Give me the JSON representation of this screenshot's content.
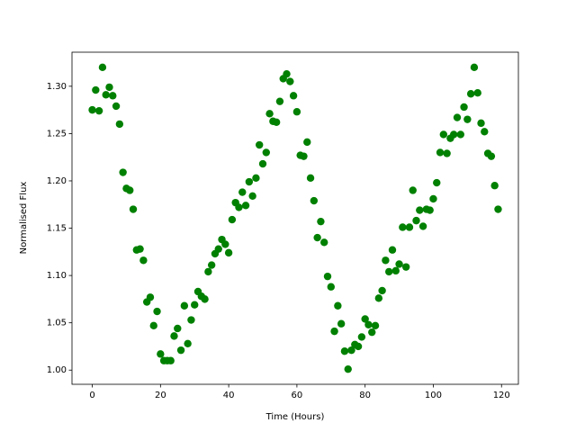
{
  "chart_data": {
    "type": "scatter",
    "xlabel": "Time (Hours)",
    "ylabel": "Normalised Flux",
    "color": "#008000",
    "x": [
      0,
      1,
      2,
      3,
      4,
      5,
      6,
      7,
      8,
      9,
      10,
      11,
      12,
      13,
      14,
      15,
      16,
      17,
      18,
      19,
      20,
      21,
      22,
      23,
      24,
      25,
      26,
      27,
      28,
      29,
      30,
      31,
      32,
      33,
      34,
      35,
      36,
      37,
      38,
      39,
      40,
      41,
      42,
      43,
      44,
      45,
      46,
      47,
      48,
      49,
      50,
      51,
      52,
      53,
      54,
      55,
      56,
      57,
      58,
      59,
      60,
      61,
      62,
      63,
      64,
      65,
      66,
      67,
      68,
      69,
      70,
      71,
      72,
      73,
      74,
      75,
      76,
      77,
      78,
      79,
      80,
      81,
      82,
      83,
      84,
      85,
      86,
      87,
      88,
      89,
      90,
      91,
      92,
      93,
      94,
      95,
      96,
      97,
      98,
      99,
      100,
      101,
      102,
      103,
      104,
      105,
      106,
      107,
      108,
      109,
      110,
      111,
      112,
      113,
      114,
      115,
      116,
      117,
      118,
      119
    ],
    "values": [
      1.275,
      1.296,
      1.274,
      1.32,
      1.291,
      1.299,
      1.29,
      1.279,
      1.26,
      1.209,
      1.192,
      1.19,
      1.17,
      1.127,
      1.128,
      1.116,
      1.072,
      1.077,
      1.047,
      1.062,
      1.017,
      1.01,
      1.01,
      1.01,
      1.036,
      1.044,
      1.021,
      1.068,
      1.028,
      1.053,
      1.069,
      1.083,
      1.078,
      1.075,
      1.104,
      1.111,
      1.123,
      1.128,
      1.138,
      1.133,
      1.124,
      1.159,
      1.177,
      1.172,
      1.188,
      1.174,
      1.199,
      1.184,
      1.203,
      1.238,
      1.218,
      1.23,
      1.271,
      1.263,
      1.262,
      1.284,
      1.308,
      1.313,
      1.305,
      1.29,
      1.273,
      1.227,
      1.226,
      1.241,
      1.203,
      1.179,
      1.14,
      1.157,
      1.135,
      1.099,
      1.088,
      1.041,
      1.068,
      1.049,
      1.02,
      1.001,
      1.021,
      1.027,
      1.025,
      1.035,
      1.054,
      1.048,
      1.04,
      1.047,
      1.076,
      1.084,
      1.116,
      1.104,
      1.127,
      1.105,
      1.112,
      1.151,
      1.109,
      1.151,
      1.19,
      1.158,
      1.169,
      1.152,
      1.17,
      1.169,
      1.181,
      1.198,
      1.23,
      1.249,
      1.229,
      1.245,
      1.249,
      1.267,
      1.249,
      1.278,
      1.265,
      1.292,
      1.32,
      1.293,
      1.261,
      1.252,
      1.229,
      1.226,
      1.195,
      1.17
    ],
    "xlim": [
      -5.95,
      124.95
    ],
    "ylim": [
      0.985,
      1.336
    ],
    "xticks": [
      0,
      20,
      40,
      60,
      80,
      100,
      120
    ],
    "yticks": [
      {
        "value": 1.0,
        "label": "1.00"
      },
      1.05,
      {
        "value": 1.1,
        "label": "1.10"
      },
      1.15,
      {
        "value": 1.2,
        "label": "1.20"
      },
      1.25,
      {
        "value": 1.3,
        "label": "1.30"
      }
    ]
  }
}
